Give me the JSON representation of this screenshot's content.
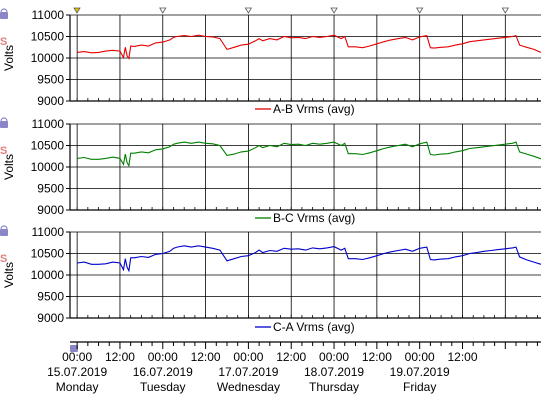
{
  "chart_data": [
    {
      "type": "line",
      "ylabel": "Volts",
      "ylim": [
        9000,
        11000
      ],
      "yticks": [
        "11000",
        "10500",
        "10000",
        "9500",
        "9000"
      ],
      "grid": true,
      "legend_position": "bottom",
      "x_unit": "hours from 15.07.2019 00:00",
      "xlim": [
        -2,
        130
      ],
      "series": [
        {
          "name": "A-B Vrms (avg)",
          "color": "#e60000",
          "x": [
            0,
            2,
            4,
            6,
            8,
            10,
            12,
            13,
            13.5,
            14,
            14.5,
            15,
            16,
            18,
            20,
            22,
            24,
            26,
            27,
            28,
            30,
            32,
            34,
            36,
            38,
            40,
            42,
            44,
            46,
            48,
            50,
            51,
            52,
            54,
            56,
            58,
            60,
            62,
            64,
            66,
            68,
            70,
            72,
            74,
            75,
            76,
            78,
            80,
            82,
            84,
            86,
            88,
            90,
            92,
            94,
            96,
            98,
            99,
            100,
            102,
            104,
            106,
            108,
            110,
            112,
            114,
            116,
            118,
            120,
            122,
            123,
            124,
            126,
            128,
            130
          ],
          "values": [
            10130,
            10150,
            10120,
            10130,
            10160,
            10180,
            10160,
            10010,
            10250,
            10050,
            9990,
            10280,
            10270,
            10300,
            10280,
            10350,
            10370,
            10420,
            10480,
            10500,
            10520,
            10500,
            10530,
            10500,
            10490,
            10450,
            10200,
            10250,
            10300,
            10320,
            10400,
            10450,
            10400,
            10450,
            10420,
            10500,
            10470,
            10480,
            10450,
            10500,
            10480,
            10500,
            10530,
            10450,
            10500,
            10260,
            10260,
            10240,
            10280,
            10330,
            10380,
            10420,
            10450,
            10480,
            10420,
            10490,
            10520,
            10240,
            10230,
            10250,
            10260,
            10300,
            10330,
            10380,
            10400,
            10420,
            10440,
            10460,
            10480,
            10500,
            10520,
            10300,
            10250,
            10200,
            10130
          ]
        },
        {
          "name": "B-C Vrms (avg)",
          "color": "#008000",
          "x": [
            0,
            2,
            4,
            6,
            8,
            10,
            12,
            13,
            13.5,
            14,
            14.5,
            15,
            16,
            18,
            20,
            22,
            24,
            26,
            27,
            28,
            30,
            32,
            34,
            36,
            38,
            40,
            42,
            44,
            46,
            48,
            50,
            51,
            52,
            54,
            56,
            58,
            60,
            62,
            64,
            66,
            68,
            70,
            72,
            74,
            75,
            76,
            78,
            80,
            82,
            84,
            86,
            88,
            90,
            92,
            94,
            96,
            98,
            99,
            100,
            102,
            104,
            106,
            108,
            110,
            112,
            114,
            116,
            118,
            120,
            122,
            123,
            124,
            126,
            128,
            130
          ],
          "values": [
            10200,
            10220,
            10180,
            10180,
            10200,
            10230,
            10200,
            10060,
            10300,
            10100,
            10030,
            10320,
            10320,
            10350,
            10330,
            10400,
            10420,
            10470,
            10530,
            10550,
            10580,
            10550,
            10580,
            10550,
            10540,
            10500,
            10270,
            10300,
            10350,
            10370,
            10450,
            10500,
            10450,
            10500,
            10470,
            10550,
            10520,
            10530,
            10500,
            10550,
            10530,
            10550,
            10580,
            10500,
            10550,
            10310,
            10310,
            10290,
            10330,
            10380,
            10430,
            10470,
            10500,
            10530,
            10470,
            10540,
            10580,
            10290,
            10280,
            10300,
            10310,
            10350,
            10380,
            10430,
            10450,
            10470,
            10490,
            10510,
            10530,
            10550,
            10580,
            10350,
            10300,
            10250,
            10190
          ]
        },
        {
          "name": "C-A Vrms (avg)",
          "color": "#0000cc",
          "x": [
            0,
            2,
            4,
            6,
            8,
            10,
            12,
            13,
            13.5,
            14,
            14.5,
            15,
            16,
            18,
            20,
            22,
            24,
            26,
            27,
            28,
            30,
            32,
            34,
            36,
            38,
            40,
            42,
            44,
            46,
            48,
            50,
            51,
            52,
            54,
            56,
            58,
            60,
            62,
            64,
            66,
            68,
            70,
            72,
            74,
            75,
            76,
            78,
            80,
            82,
            84,
            86,
            88,
            90,
            92,
            94,
            96,
            98,
            99,
            100,
            102,
            104,
            106,
            108,
            110,
            112,
            114,
            116,
            118,
            120,
            122,
            123,
            124,
            126,
            128,
            130
          ],
          "values": [
            10280,
            10300,
            10250,
            10250,
            10260,
            10300,
            10280,
            10120,
            10380,
            10180,
            10100,
            10400,
            10400,
            10430,
            10410,
            10480,
            10500,
            10550,
            10620,
            10650,
            10680,
            10650,
            10680,
            10650,
            10620,
            10580,
            10330,
            10380,
            10430,
            10450,
            10520,
            10580,
            10520,
            10570,
            10550,
            10620,
            10600,
            10610,
            10580,
            10630,
            10610,
            10630,
            10660,
            10580,
            10620,
            10380,
            10380,
            10360,
            10400,
            10450,
            10500,
            10540,
            10570,
            10600,
            10550,
            10620,
            10650,
            10360,
            10350,
            10370,
            10380,
            10420,
            10450,
            10500,
            10520,
            10550,
            10570,
            10590,
            10610,
            10630,
            10650,
            10420,
            10350,
            10300,
            10250
          ]
        }
      ]
    }
  ],
  "xaxis": {
    "times": [
      "00:00",
      "12:00",
      "00:00",
      "12:00",
      "00:00",
      "12:00",
      "00:00",
      "12:00",
      "00:00",
      "12:00"
    ],
    "dates": [
      "15.07.2019",
      "16.07.2019",
      "17.07.2019",
      "18.07.2019",
      "19.07.2019"
    ],
    "days": [
      "Monday",
      "Tuesday",
      "Wednesday",
      "Thursday",
      "Friday"
    ]
  },
  "icons": [
    "lock-icon",
    "scale-icon"
  ],
  "colors": {
    "marker": "#000000",
    "grid": "#000000",
    "icon": "#8a86c8",
    "icon_alt": "#e08080"
  }
}
